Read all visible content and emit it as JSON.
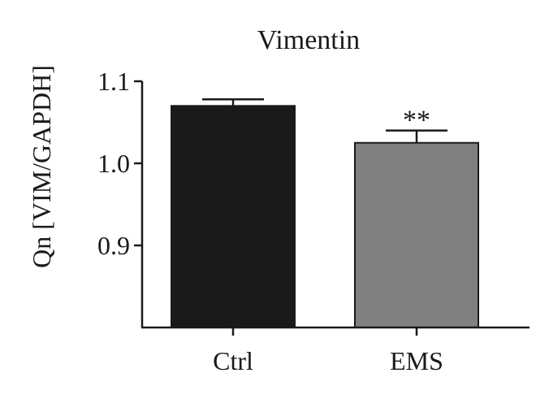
{
  "chart_data": {
    "type": "bar",
    "title": "Vimentin",
    "ylabel": "Qn [VIM/GAPDH]",
    "xlabel": "",
    "categories": [
      "Ctrl",
      "EMS"
    ],
    "values": [
      1.07,
      1.025
    ],
    "errors": [
      0.008,
      0.015
    ],
    "bar_colors": [
      "#1a1a1a",
      "#808080"
    ],
    "significance": [
      "",
      "**"
    ],
    "ylim": [
      0.8,
      1.1
    ],
    "yticks": [
      0.9,
      1.0,
      1.1
    ],
    "ytick_labels": [
      "0.9",
      "1.0",
      "1.1"
    ],
    "grid": false,
    "legend": "none"
  }
}
